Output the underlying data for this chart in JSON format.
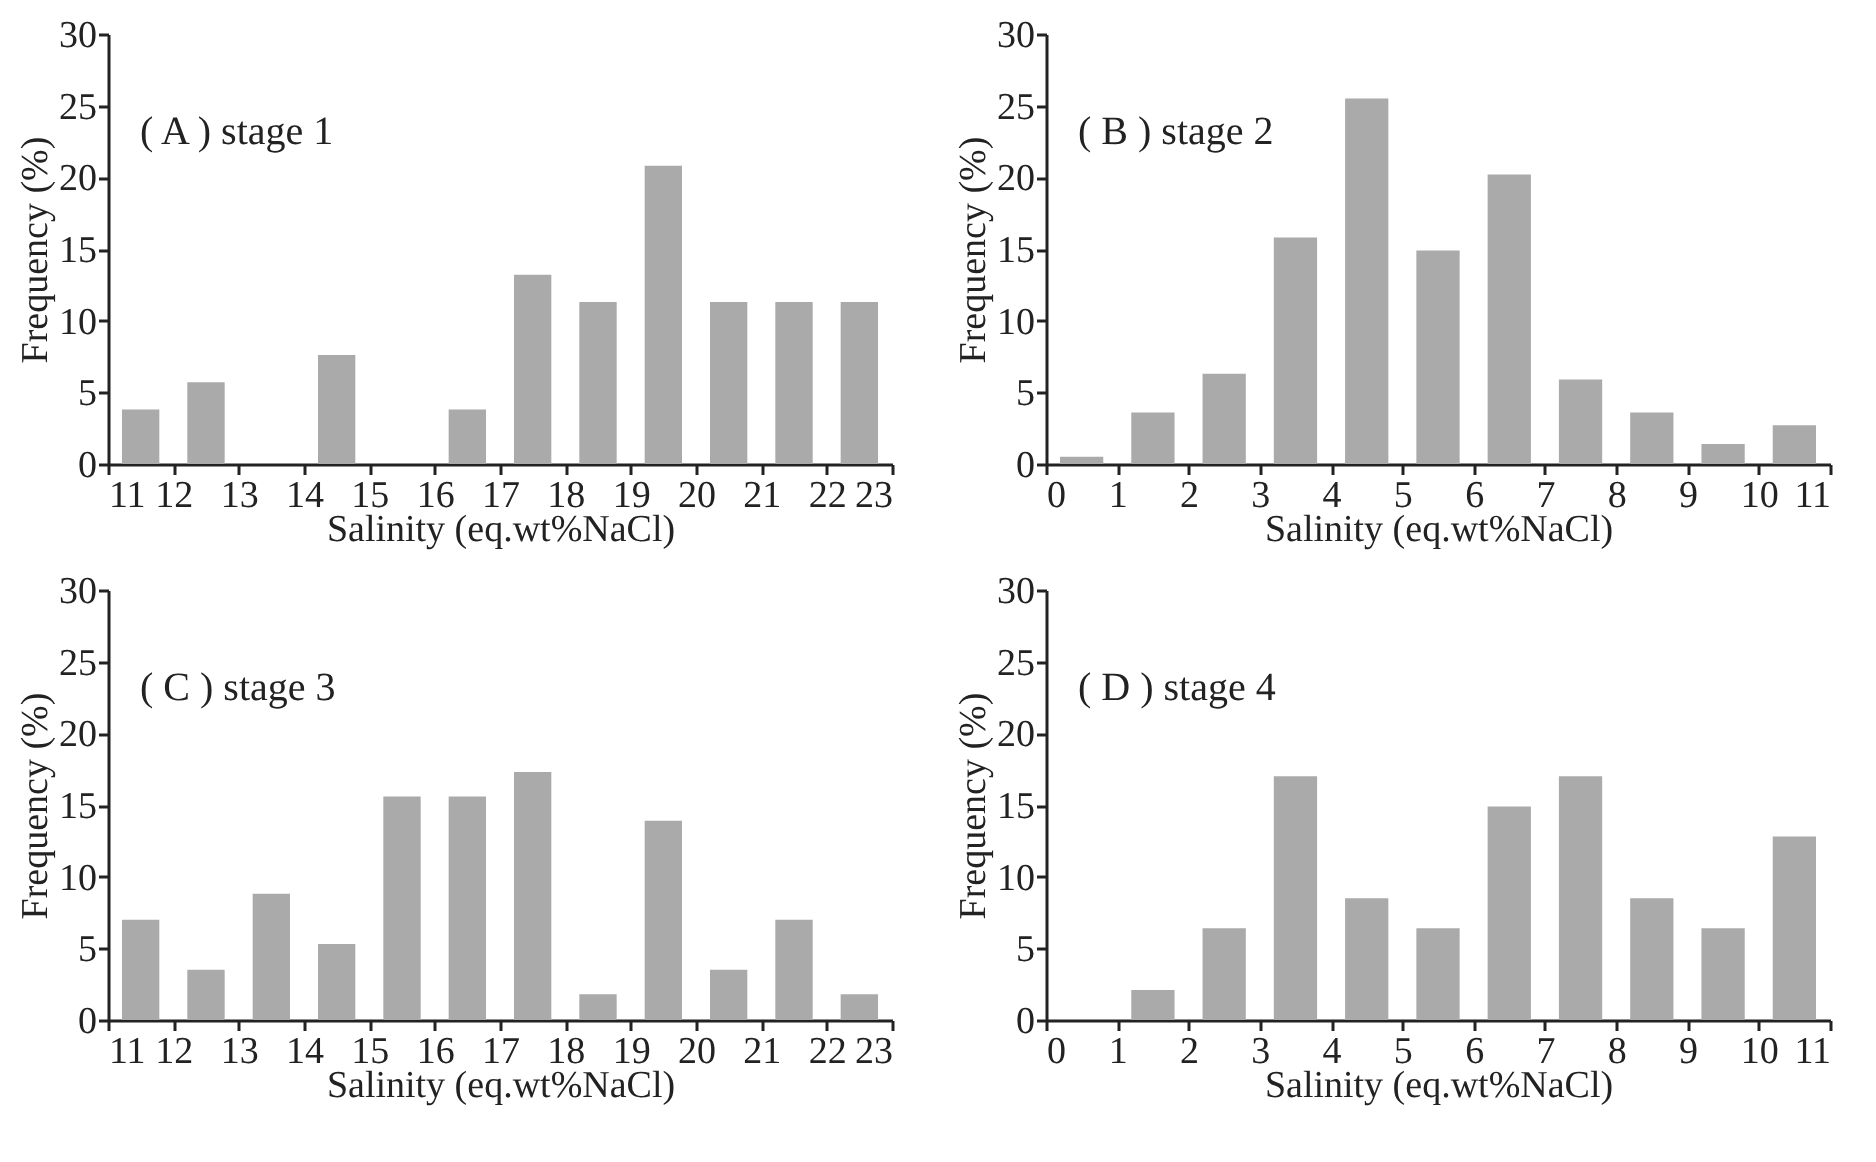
{
  "chart_data": [
    {
      "type": "histogram",
      "title": "( A ) stage 1",
      "xlabel": "Salinity (eq.wt%NaCl)",
      "ylabel": "Frequency (%)",
      "color": "#aaaaaa",
      "bins": [
        11,
        12,
        13,
        14,
        15,
        16,
        17,
        18,
        19,
        20,
        21,
        22,
        23
      ],
      "values": [
        3.8,
        5.7,
        0,
        7.6,
        0,
        3.8,
        13.2,
        11.3,
        20.8,
        11.3,
        11.3,
        11.3
      ],
      "xlim": [
        11,
        23
      ],
      "xticks": [
        11,
        12,
        13,
        14,
        15,
        16,
        17,
        18,
        19,
        20,
        21,
        22,
        23
      ],
      "ylim": [
        0,
        30
      ],
      "yticks": [
        0,
        5,
        10,
        15,
        20,
        25,
        30
      ]
    },
    {
      "type": "histogram",
      "title": "( B ) stage 2",
      "xlabel": "Salinity (eq.wt%NaCl)",
      "ylabel": "Frequency (%)",
      "color": "#aaaaaa",
      "bins": [
        0,
        1,
        2,
        3,
        4,
        5,
        6,
        7,
        8,
        9,
        10,
        11
      ],
      "values": [
        0.5,
        3.6,
        6.3,
        15.8,
        25.5,
        14.9,
        20.2,
        5.9,
        3.6,
        1.4,
        2.7
      ],
      "xlim": [
        0,
        11
      ],
      "xticks": [
        0,
        1,
        2,
        3,
        4,
        5,
        6,
        7,
        8,
        9,
        10,
        11
      ],
      "ylim": [
        0,
        30
      ],
      "yticks": [
        0,
        5,
        10,
        15,
        20,
        25,
        30
      ]
    },
    {
      "type": "histogram",
      "title": "( C ) stage 3",
      "xlabel": "Salinity (eq.wt%NaCl)",
      "ylabel": "Frequency (%)",
      "color": "#aaaaaa",
      "bins": [
        11,
        12,
        13,
        14,
        15,
        16,
        17,
        18,
        19,
        20,
        21,
        22,
        23
      ],
      "values": [
        7.0,
        3.5,
        8.8,
        5.3,
        15.6,
        15.6,
        17.3,
        1.8,
        13.9,
        3.5,
        7.0,
        1.8
      ],
      "xlim": [
        11,
        23
      ],
      "xticks": [
        11,
        12,
        13,
        14,
        15,
        16,
        17,
        18,
        19,
        20,
        21,
        22,
        23
      ],
      "ylim": [
        0,
        30
      ],
      "yticks": [
        0,
        5,
        10,
        15,
        20,
        25,
        30
      ]
    },
    {
      "type": "histogram",
      "title": "( D ) stage 4",
      "xlabel": "Salinity (eq.wt%NaCl)",
      "ylabel": "Frequency (%)",
      "color": "#aaaaaa",
      "bins": [
        0,
        1,
        2,
        3,
        4,
        5,
        6,
        7,
        8,
        9,
        10,
        11
      ],
      "values": [
        0,
        2.1,
        6.4,
        17.0,
        8.5,
        6.4,
        14.9,
        17.0,
        8.5,
        6.4,
        12.8
      ],
      "xlim": [
        0,
        11
      ],
      "xticks": [
        0,
        1,
        2,
        3,
        4,
        5,
        6,
        7,
        8,
        9,
        10,
        11
      ],
      "ylim": [
        0,
        30
      ],
      "yticks": [
        0,
        5,
        10,
        15,
        20,
        25,
        30
      ]
    }
  ]
}
